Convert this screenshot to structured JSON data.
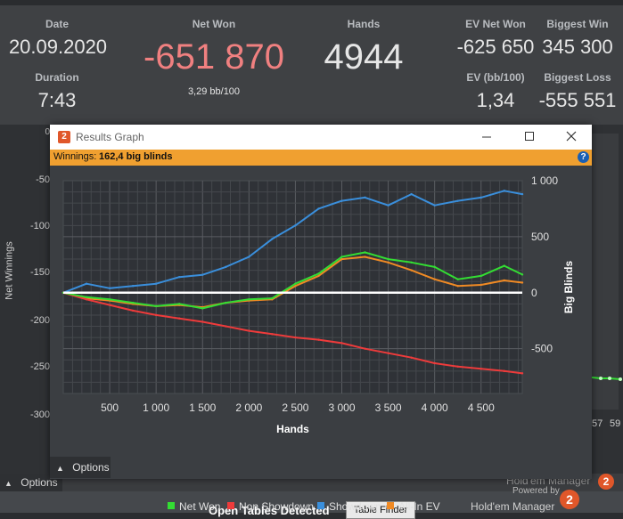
{
  "stats": {
    "date_label": "Date",
    "date_value": "20.09.2020",
    "duration_label": "Duration",
    "duration_value": "7:43",
    "netwon_label": "Net Won",
    "netwon_value": "-651 870",
    "netwon_sub": "3,29 bb/100",
    "hands_label": "Hands",
    "hands_value": "4944",
    "evnet_label": "EV Net Won",
    "evnet_value": "-625 650",
    "evbb_label": "EV (bb/100)",
    "evbb_value": "1,34",
    "bigwin_label": "Biggest Win",
    "bigwin_value": "345 300",
    "bigloss_label": "Biggest Loss",
    "bigloss_value": "-555 551"
  },
  "background_graph": {
    "y_title": "Net Winnings",
    "y_ticks": [
      "-50",
      "-100",
      "-150",
      "-200",
      "-250",
      "-300"
    ],
    "x_ticks_right": [
      "57",
      "59"
    ],
    "zero_marker": "0",
    "options_label": "Options",
    "brand": "Hold'em Manager"
  },
  "window": {
    "app_icon": "2",
    "title": "Results Graph",
    "banner_label": "Winnings:",
    "banner_value": "162,4 big blinds",
    "help_icon": "?",
    "options_label": "Options",
    "powered_by": "Powered by",
    "brand": "Hold'em Manager",
    "brand_badge": "2"
  },
  "footer": {
    "text": "Open Tables Detected",
    "button": "Table Finder"
  },
  "colors": {
    "netwon": "#33dd33",
    "nonshowdown": "#ee3b3b",
    "showdown": "#3a8fdc",
    "allinev": "#f08a24",
    "netwon_value": "#f08080"
  },
  "chart_data": {
    "type": "line",
    "xlabel": "Hands",
    "ylabel": "Big Blinds",
    "xlim": [
      0,
      4944
    ],
    "ylim": [
      -900,
      1000
    ],
    "x_ticks": [
      "500",
      "1 000",
      "1 500",
      "2 000",
      "2 500",
      "3 000",
      "3 500",
      "4 000",
      "4 500"
    ],
    "y_ticks": [
      "1 000",
      "500",
      "0",
      "-500"
    ],
    "grid": true,
    "legend": "bottom",
    "series": [
      {
        "name": "Net Won",
        "color": "#33dd33",
        "x": [
          0,
          250,
          500,
          750,
          1000,
          1250,
          1500,
          1750,
          2000,
          2250,
          2500,
          2750,
          3000,
          3250,
          3500,
          3750,
          4000,
          4250,
          4500,
          4750,
          4944
        ],
        "y": [
          0,
          -40,
          -60,
          -90,
          -120,
          -100,
          -140,
          -90,
          -60,
          -50,
          80,
          170,
          320,
          360,
          300,
          270,
          230,
          120,
          150,
          240,
          162
        ]
      },
      {
        "name": "Non Showdown",
        "color": "#ee3b3b",
        "x": [
          0,
          250,
          500,
          750,
          1000,
          1250,
          1500,
          1750,
          2000,
          2250,
          2500,
          2750,
          3000,
          3250,
          3500,
          3750,
          4000,
          4250,
          4500,
          4750,
          4944
        ],
        "y": [
          0,
          -60,
          -110,
          -160,
          -200,
          -230,
          -260,
          -300,
          -340,
          -370,
          -400,
          -420,
          -450,
          -500,
          -540,
          -580,
          -630,
          -660,
          -680,
          -700,
          -720
        ]
      },
      {
        "name": "Showdown",
        "color": "#3a8fdc",
        "x": [
          0,
          250,
          500,
          750,
          1000,
          1250,
          1500,
          1750,
          2000,
          2250,
          2500,
          2750,
          3000,
          3250,
          3500,
          3750,
          4000,
          4250,
          4500,
          4750,
          4944
        ],
        "y": [
          0,
          80,
          40,
          60,
          80,
          140,
          160,
          230,
          320,
          480,
          600,
          750,
          820,
          850,
          780,
          880,
          780,
          820,
          850,
          910,
          880
        ]
      },
      {
        "name": "All-In EV",
        "color": "#f08a24",
        "x": [
          0,
          250,
          500,
          750,
          1000,
          1250,
          1500,
          1750,
          2000,
          2250,
          2500,
          2750,
          3000,
          3250,
          3500,
          3750,
          4000,
          4250,
          4500,
          4750,
          4944
        ],
        "y": [
          0,
          -50,
          -70,
          -100,
          -120,
          -110,
          -130,
          -90,
          -70,
          -60,
          60,
          150,
          300,
          320,
          270,
          200,
          120,
          60,
          70,
          110,
          90
        ]
      }
    ]
  }
}
